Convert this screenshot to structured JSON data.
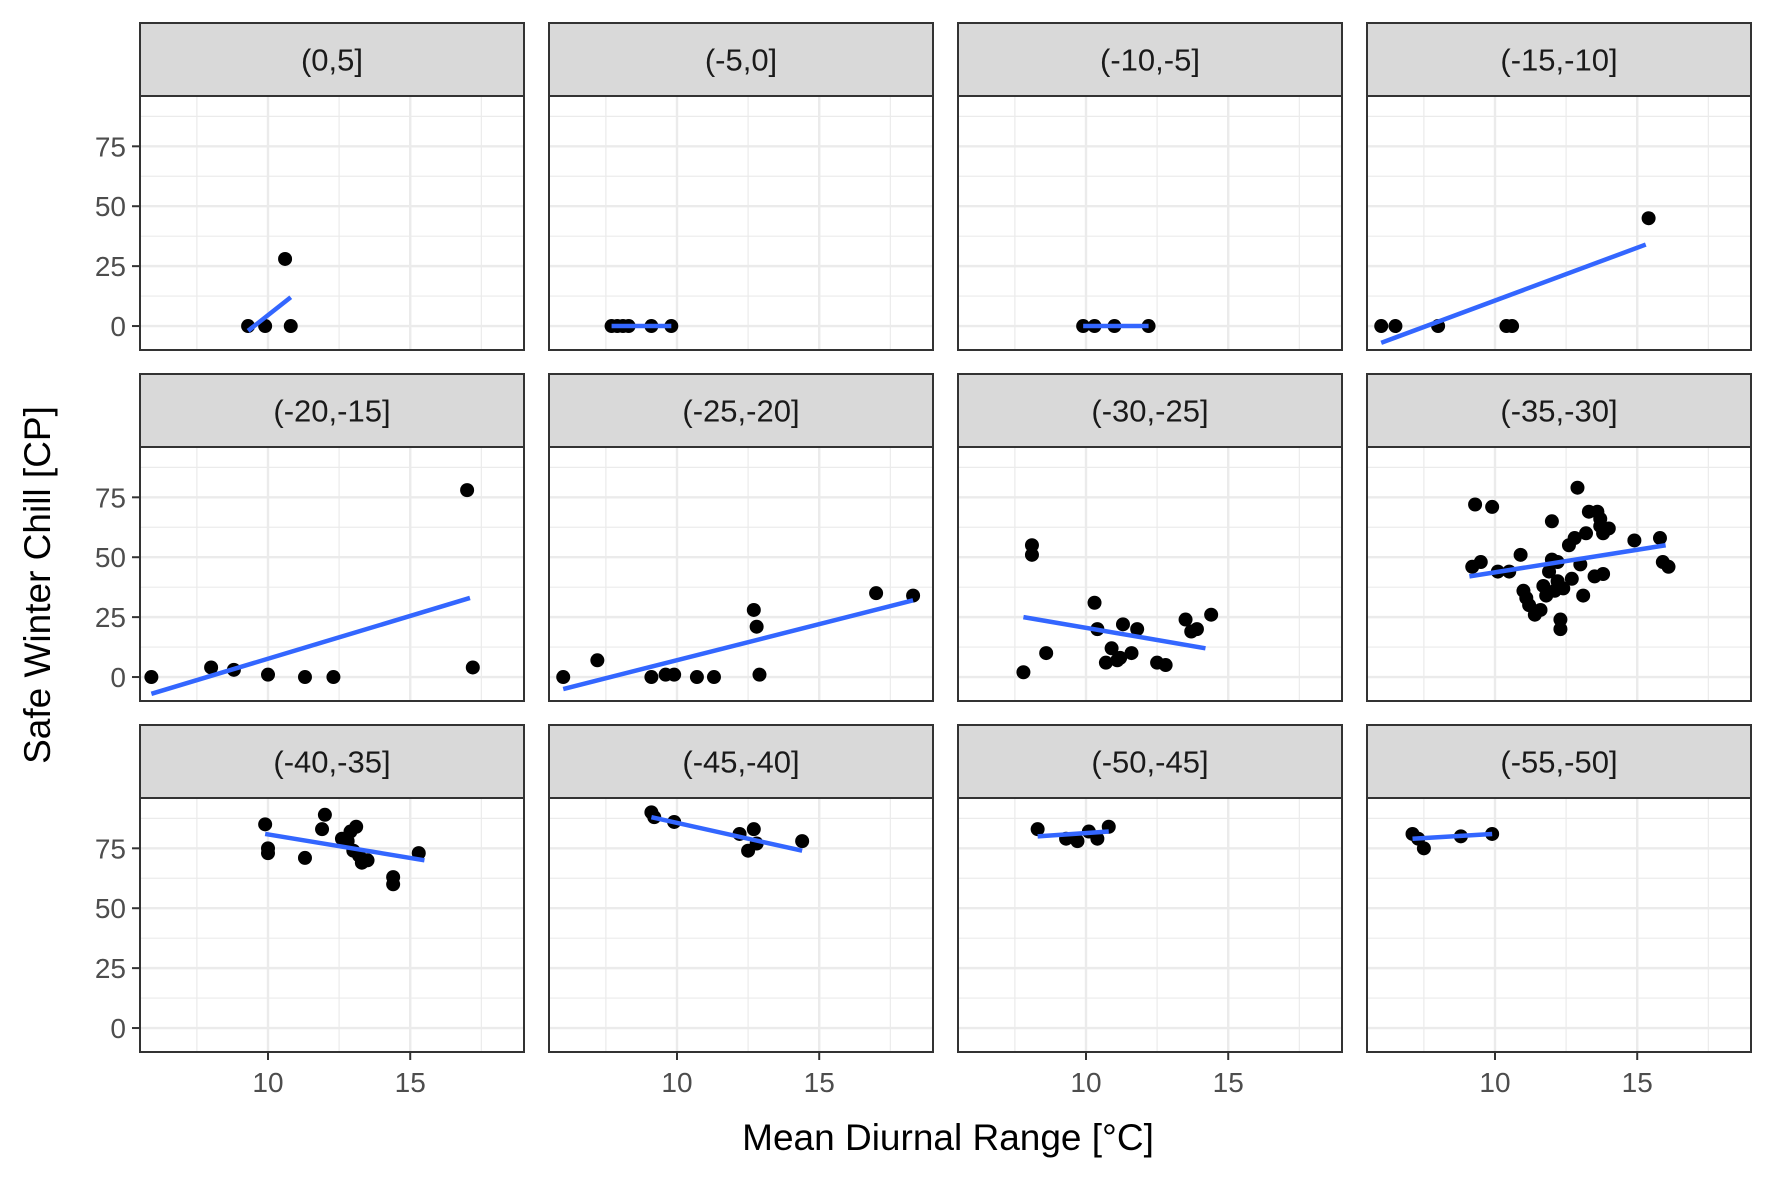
{
  "chart_data": {
    "type": "scatter",
    "layout": "facet-grid",
    "xlabel": "Mean Diurnal Range [°C]",
    "ylabel": "Safe Winter Chill [CP]",
    "xlim": [
      5.5,
      19
    ],
    "ylim": [
      -10,
      96
    ],
    "xticks": [
      10,
      15
    ],
    "yticks": [
      0,
      25,
      50,
      75
    ],
    "grid": true,
    "colors": {
      "points": "#000000",
      "trend_line": "#3366FF",
      "strip_fill": "#d9d9d9",
      "panel_border": "#333333",
      "grid": "#ebebeb"
    },
    "panels": [
      {
        "label": "(0,5]",
        "points": [
          [
            9.3,
            0
          ],
          [
            9.9,
            0
          ],
          [
            10.6,
            28
          ],
          [
            10.8,
            0
          ]
        ],
        "fit": [
          [
            9.3,
            -2
          ],
          [
            10.8,
            12
          ]
        ]
      },
      {
        "label": "(-5,0]",
        "points": [
          [
            7.7,
            0
          ],
          [
            7.9,
            0
          ],
          [
            8.1,
            0
          ],
          [
            8.3,
            0
          ],
          [
            9.1,
            0
          ],
          [
            9.8,
            0
          ]
        ],
        "fit": [
          [
            7.7,
            0
          ],
          [
            9.8,
            0
          ]
        ]
      },
      {
        "label": "(-10,-5]",
        "points": [
          [
            9.9,
            0
          ],
          [
            10.3,
            0
          ],
          [
            11.0,
            0
          ],
          [
            12.2,
            0
          ]
        ],
        "fit": [
          [
            9.9,
            0
          ],
          [
            12.2,
            0
          ]
        ]
      },
      {
        "label": "(-15,-10]",
        "points": [
          [
            6.0,
            0
          ],
          [
            6.5,
            0
          ],
          [
            8.0,
            0
          ],
          [
            10.4,
            0
          ],
          [
            10.6,
            0
          ],
          [
            15.4,
            45
          ]
        ],
        "fit": [
          [
            6.0,
            -7
          ],
          [
            15.3,
            34
          ]
        ]
      },
      {
        "label": "(-20,-15]",
        "points": [
          [
            5.9,
            0
          ],
          [
            8.0,
            4
          ],
          [
            8.8,
            3
          ],
          [
            10.0,
            1
          ],
          [
            11.3,
            0
          ],
          [
            12.3,
            0
          ],
          [
            17.0,
            78
          ],
          [
            17.2,
            4
          ]
        ],
        "fit": [
          [
            5.9,
            -7
          ],
          [
            17.1,
            33
          ]
        ]
      },
      {
        "label": "(-25,-20]",
        "points": [
          [
            6.0,
            0
          ],
          [
            7.2,
            7
          ],
          [
            9.1,
            0
          ],
          [
            9.6,
            1
          ],
          [
            9.9,
            1
          ],
          [
            10.7,
            0
          ],
          [
            11.3,
            0
          ],
          [
            12.7,
            28
          ],
          [
            12.8,
            21
          ],
          [
            12.9,
            1
          ],
          [
            17.0,
            35
          ],
          [
            18.3,
            34
          ]
        ],
        "fit": [
          [
            6.0,
            -5
          ],
          [
            18.3,
            32
          ]
        ]
      },
      {
        "label": "(-30,-25]",
        "points": [
          [
            7.8,
            2
          ],
          [
            8.1,
            55
          ],
          [
            8.1,
            51
          ],
          [
            8.6,
            10
          ],
          [
            10.3,
            31
          ],
          [
            10.4,
            20
          ],
          [
            10.7,
            6
          ],
          [
            10.9,
            12
          ],
          [
            11.1,
            7
          ],
          [
            11.2,
            8
          ],
          [
            11.3,
            22
          ],
          [
            11.6,
            10
          ],
          [
            11.8,
            20
          ],
          [
            12.5,
            6
          ],
          [
            12.8,
            5
          ],
          [
            13.5,
            24
          ],
          [
            13.7,
            19
          ],
          [
            13.9,
            20
          ],
          [
            14.4,
            26
          ]
        ],
        "fit": [
          [
            7.8,
            25
          ],
          [
            14.2,
            12
          ]
        ]
      },
      {
        "label": "(-35,-30]",
        "points": [
          [
            9.2,
            46
          ],
          [
            9.3,
            72
          ],
          [
            9.5,
            48
          ],
          [
            9.9,
            71
          ],
          [
            10.1,
            44
          ],
          [
            10.5,
            44
          ],
          [
            10.9,
            51
          ],
          [
            11.0,
            36
          ],
          [
            11.1,
            33
          ],
          [
            11.2,
            30
          ],
          [
            11.4,
            26
          ],
          [
            11.6,
            28
          ],
          [
            11.7,
            38
          ],
          [
            11.8,
            34
          ],
          [
            11.9,
            44
          ],
          [
            12.0,
            65
          ],
          [
            12.0,
            49
          ],
          [
            12.1,
            36
          ],
          [
            12.2,
            48
          ],
          [
            12.2,
            40
          ],
          [
            12.3,
            24
          ],
          [
            12.3,
            20
          ],
          [
            12.4,
            37
          ],
          [
            12.6,
            55
          ],
          [
            12.7,
            41
          ],
          [
            12.8,
            58
          ],
          [
            12.9,
            79
          ],
          [
            13.0,
            47
          ],
          [
            13.1,
            34
          ],
          [
            13.2,
            60
          ],
          [
            13.3,
            69
          ],
          [
            13.5,
            42
          ],
          [
            13.6,
            69
          ],
          [
            13.7,
            66
          ],
          [
            13.7,
            63
          ],
          [
            13.8,
            60
          ],
          [
            13.8,
            43
          ],
          [
            14.0,
            62
          ],
          [
            14.9,
            57
          ],
          [
            15.8,
            58
          ],
          [
            15.9,
            48
          ],
          [
            16.1,
            46
          ]
        ],
        "fit": [
          [
            9.1,
            42
          ],
          [
            16.0,
            55
          ]
        ]
      },
      {
        "label": "(-40,-35]",
        "points": [
          [
            9.9,
            85
          ],
          [
            10.0,
            75
          ],
          [
            10.0,
            73
          ],
          [
            11.3,
            71
          ],
          [
            11.9,
            83
          ],
          [
            12.0,
            89
          ],
          [
            12.6,
            79
          ],
          [
            12.8,
            78
          ],
          [
            12.9,
            82
          ],
          [
            13.0,
            74
          ],
          [
            13.1,
            84
          ],
          [
            13.2,
            72
          ],
          [
            13.3,
            69
          ],
          [
            13.5,
            70
          ],
          [
            14.4,
            63
          ],
          [
            14.4,
            60
          ],
          [
            15.3,
            73
          ]
        ],
        "fit": [
          [
            9.9,
            81
          ],
          [
            15.5,
            70
          ]
        ]
      },
      {
        "label": "(-45,-40]",
        "points": [
          [
            9.1,
            90
          ],
          [
            9.2,
            88
          ],
          [
            9.9,
            86
          ],
          [
            12.2,
            81
          ],
          [
            12.5,
            74
          ],
          [
            12.7,
            83
          ],
          [
            12.8,
            77
          ],
          [
            14.4,
            78
          ]
        ],
        "fit": [
          [
            9.1,
            88
          ],
          [
            14.4,
            74
          ]
        ]
      },
      {
        "label": "(-50,-45]",
        "points": [
          [
            8.3,
            83
          ],
          [
            9.3,
            79
          ],
          [
            9.7,
            78
          ],
          [
            10.1,
            82
          ],
          [
            10.4,
            79
          ],
          [
            10.8,
            84
          ]
        ],
        "fit": [
          [
            8.3,
            80
          ],
          [
            10.8,
            82
          ]
        ]
      },
      {
        "label": "(-55,-50]",
        "points": [
          [
            7.1,
            81
          ],
          [
            7.3,
            79
          ],
          [
            7.5,
            75
          ],
          [
            8.8,
            80
          ],
          [
            9.9,
            81
          ]
        ],
        "fit": [
          [
            7.1,
            79
          ],
          [
            9.9,
            81
          ]
        ]
      }
    ]
  }
}
